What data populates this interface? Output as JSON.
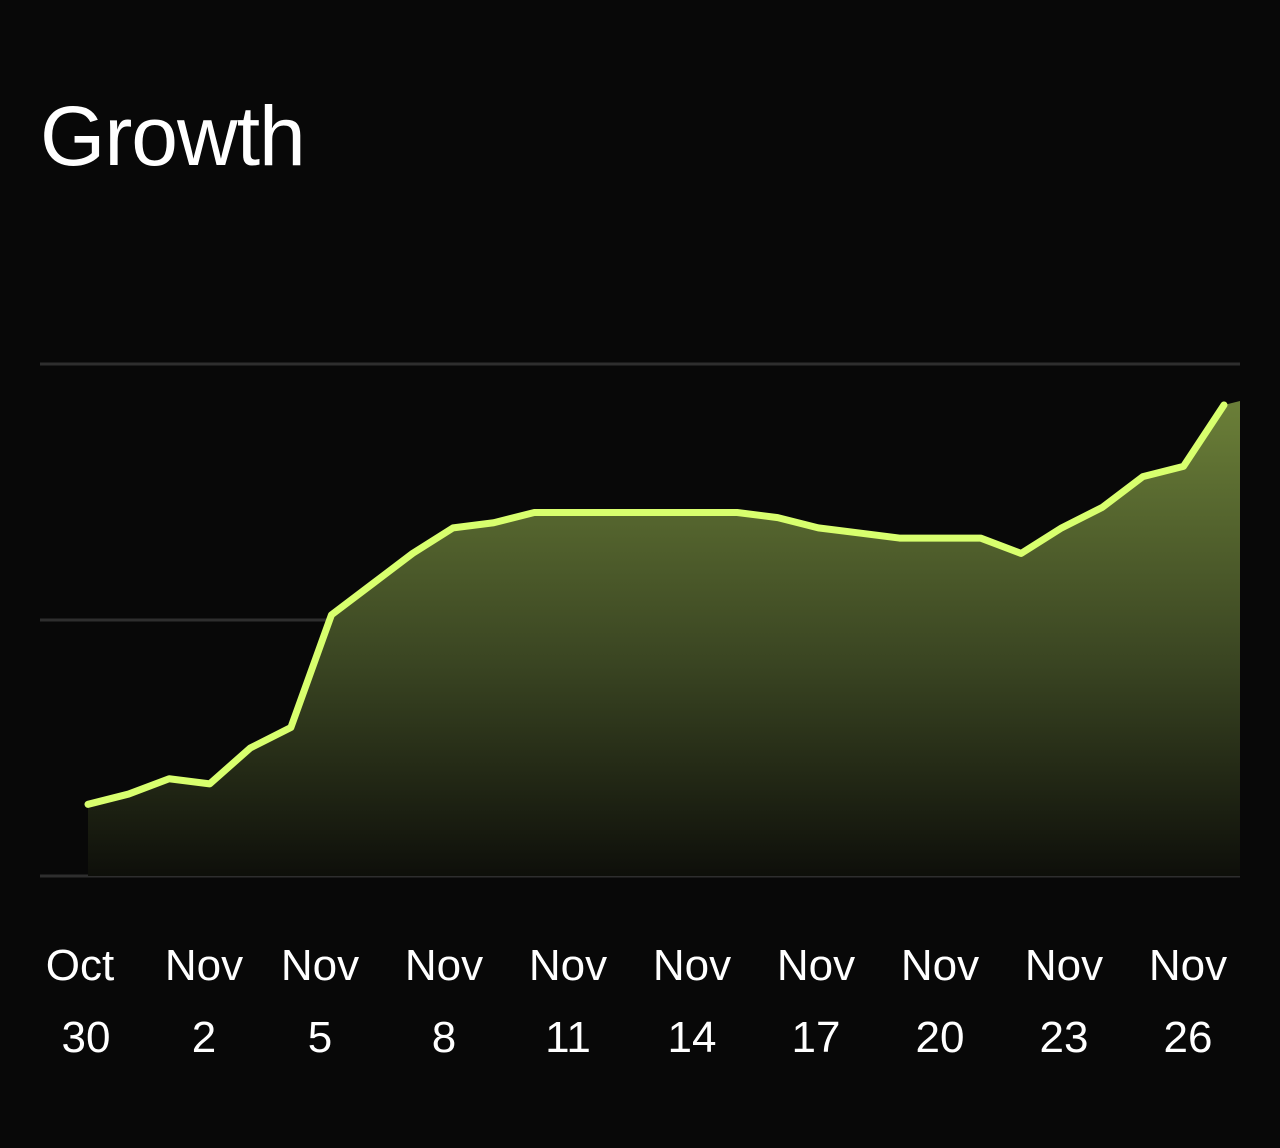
{
  "title": "Growth",
  "colors": {
    "background": "#080808",
    "line": "#d8ff6e",
    "area_top": "#6b7f38",
    "gridline": "#2e2e2e",
    "text": "#ffffff"
  },
  "chart_data": {
    "type": "area",
    "title": "Growth",
    "xlabel": "",
    "ylabel": "",
    "grid": true,
    "gridlines": 3,
    "legend": "none",
    "x_ticks": [
      {
        "month": "Oct",
        "day": "30"
      },
      {
        "month": "Nov",
        "day": "2"
      },
      {
        "month": "Nov",
        "day": "5"
      },
      {
        "month": "Nov",
        "day": "8"
      },
      {
        "month": "Nov",
        "day": "11"
      },
      {
        "month": "Nov",
        "day": "14"
      },
      {
        "month": "Nov",
        "day": "17"
      },
      {
        "month": "Nov",
        "day": "20"
      },
      {
        "month": "Nov",
        "day": "23"
      },
      {
        "month": "Nov",
        "day": "26"
      }
    ],
    "ylim": [
      0,
      100
    ],
    "series": [
      {
        "x": [
          "Oct 30",
          "Oct 31",
          "Nov 1",
          "Nov 2",
          "Nov 3",
          "Nov 4",
          "Nov 5",
          "Nov 6",
          "Nov 7",
          "Nov 8",
          "Nov 9",
          "Nov 10",
          "Nov 11",
          "Nov 12",
          "Nov 13",
          "Nov 14",
          "Nov 15",
          "Nov 16",
          "Nov 17",
          "Nov 18",
          "Nov 19",
          "Nov 20",
          "Nov 21",
          "Nov 22",
          "Nov 23",
          "Nov 24",
          "Nov 25",
          "Nov 26",
          "Nov 27"
        ],
        "values": [
          14,
          16,
          19,
          18,
          25,
          29,
          51,
          57,
          63,
          68,
          69,
          71,
          71,
          71,
          71,
          71,
          71,
          70,
          68,
          67,
          66,
          66,
          66,
          63,
          68,
          72,
          78,
          80,
          92
        ]
      }
    ]
  }
}
